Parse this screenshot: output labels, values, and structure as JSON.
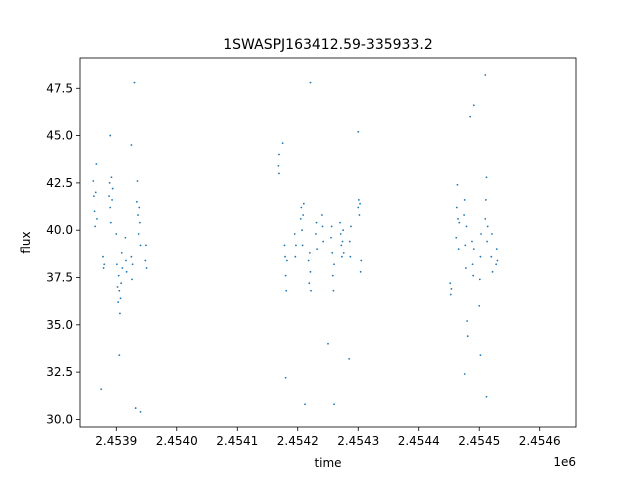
{
  "chart_data": {
    "type": "scatter",
    "title": "1SWASPJ163412.59-335933.2",
    "xlabel": "time",
    "ylabel": "flux",
    "x_offset_label": "1e6",
    "xlim": [
      2453840,
      2454660
    ],
    "ylim": [
      29.6,
      49.1
    ],
    "x_ticks": [
      2453900,
      2454000,
      2454100,
      2454200,
      2454300,
      2454400,
      2454500,
      2454600
    ],
    "x_tick_labels": [
      "2.4539",
      "2.4540",
      "2.4541",
      "2.4542",
      "2.4543",
      "2.4544",
      "2.4545",
      "2.4546"
    ],
    "y_ticks": [
      30.0,
      32.5,
      35.0,
      37.5,
      40.0,
      42.5,
      45.0,
      47.5
    ],
    "y_tick_labels": [
      "30.0",
      "32.5",
      "35.0",
      "37.5",
      "40.0",
      "42.5",
      "45.0",
      "47.5"
    ],
    "grid": false,
    "marker_color": "#1f77b4",
    "series": [
      {
        "points": [
          [
            2453862,
            42.6
          ],
          [
            2453863,
            41.8
          ],
          [
            2453864,
            41.0
          ],
          [
            2453865,
            40.2
          ],
          [
            2453866,
            42.0
          ],
          [
            2453867,
            43.5
          ],
          [
            2453868,
            40.6
          ],
          [
            2453878,
            38.6
          ],
          [
            2453879,
            38.0
          ],
          [
            2453880,
            38.2
          ],
          [
            2453888,
            41.8
          ],
          [
            2453889,
            42.5
          ],
          [
            2453890,
            41.2
          ],
          [
            2453891,
            40.4
          ],
          [
            2453892,
            42.8
          ],
          [
            2453893,
            41.6
          ],
          [
            2453894,
            42.2
          ],
          [
            2453900,
            39.8
          ],
          [
            2453901,
            38.2
          ],
          [
            2453902,
            37.0
          ],
          [
            2453903,
            36.2
          ],
          [
            2453904,
            37.6
          ],
          [
            2453905,
            36.8
          ],
          [
            2453906,
            35.6
          ],
          [
            2453907,
            36.4
          ],
          [
            2453908,
            37.2
          ],
          [
            2453909,
            38.8
          ],
          [
            2453910,
            38.0
          ],
          [
            2453915,
            39.6
          ],
          [
            2453916,
            38.4
          ],
          [
            2453917,
            37.8
          ],
          [
            2453925,
            38.6
          ],
          [
            2453926,
            37.4
          ],
          [
            2453927,
            38.2
          ],
          [
            2453934,
            41.5
          ],
          [
            2453935,
            42.6
          ],
          [
            2453936,
            40.8
          ],
          [
            2453937,
            39.8
          ],
          [
            2453938,
            41.2
          ],
          [
            2453939,
            40.4
          ],
          [
            2453940,
            39.2
          ],
          [
            2453948,
            38.4
          ],
          [
            2453949,
            39.2
          ],
          [
            2453950,
            38.0
          ],
          [
            2453875,
            31.6
          ],
          [
            2453930,
            47.8
          ],
          [
            2453932,
            30.6
          ],
          [
            2453940,
            30.4
          ],
          [
            2453890,
            45.0
          ],
          [
            2453925,
            44.5
          ],
          [
            2453905,
            33.4
          ],
          [
            2454168,
            43.4
          ],
          [
            2454169,
            44.0
          ],
          [
            2454169,
            43.0
          ],
          [
            2454178,
            39.2
          ],
          [
            2454179,
            38.6
          ],
          [
            2454180,
            37.6
          ],
          [
            2454181,
            36.8
          ],
          [
            2454182,
            38.4
          ],
          [
            2454195,
            39.8
          ],
          [
            2454196,
            38.6
          ],
          [
            2454197,
            39.2
          ],
          [
            2454205,
            40.6
          ],
          [
            2454206,
            41.2
          ],
          [
            2454207,
            40.0
          ],
          [
            2454208,
            39.2
          ],
          [
            2454209,
            40.8
          ],
          [
            2454210,
            41.4
          ],
          [
            2454218,
            38.4
          ],
          [
            2454219,
            37.2
          ],
          [
            2454220,
            38.8
          ],
          [
            2454221,
            37.8
          ],
          [
            2454222,
            36.8
          ],
          [
            2454230,
            39.8
          ],
          [
            2454231,
            40.4
          ],
          [
            2454232,
            39.0
          ],
          [
            2454240,
            40.8
          ],
          [
            2454241,
            40.2
          ],
          [
            2454242,
            39.4
          ],
          [
            2454255,
            39.6
          ],
          [
            2454256,
            40.2
          ],
          [
            2454257,
            38.8
          ],
          [
            2454258,
            37.6
          ],
          [
            2454259,
            36.8
          ],
          [
            2454260,
            38.2
          ],
          [
            2454270,
            40.4
          ],
          [
            2454271,
            39.8
          ],
          [
            2454272,
            39.2
          ],
          [
            2454273,
            38.6
          ],
          [
            2454274,
            39.4
          ],
          [
            2454275,
            40.0
          ],
          [
            2454276,
            38.8
          ],
          [
            2454286,
            39.4
          ],
          [
            2454287,
            38.6
          ],
          [
            2454288,
            40.2
          ],
          [
            2454300,
            41.2
          ],
          [
            2454301,
            41.6
          ],
          [
            2454302,
            40.8
          ],
          [
            2454303,
            41.4
          ],
          [
            2454304,
            37.8
          ],
          [
            2454305,
            38.4
          ],
          [
            2454175,
            44.6
          ],
          [
            2454180,
            32.2
          ],
          [
            2454212,
            30.8
          ],
          [
            2454221,
            47.8
          ],
          [
            2454250,
            34.0
          ],
          [
            2454260,
            30.8
          ],
          [
            2454285,
            33.2
          ],
          [
            2454300,
            45.2
          ],
          [
            2454452,
            37.2
          ],
          [
            2454453,
            36.6
          ],
          [
            2454454,
            36.9
          ],
          [
            2454462,
            39.6
          ],
          [
            2454463,
            41.2
          ],
          [
            2454464,
            42.4
          ],
          [
            2454465,
            40.6
          ],
          [
            2454466,
            39.0
          ],
          [
            2454467,
            40.4
          ],
          [
            2454475,
            40.8
          ],
          [
            2454476,
            41.6
          ],
          [
            2454477,
            39.2
          ],
          [
            2454478,
            38.0
          ],
          [
            2454479,
            40.2
          ],
          [
            2454480,
            35.2
          ],
          [
            2454481,
            34.4
          ],
          [
            2454488,
            39.4
          ],
          [
            2454489,
            38.2
          ],
          [
            2454490,
            37.6
          ],
          [
            2454491,
            39.0
          ],
          [
            2454500,
            36.0
          ],
          [
            2454501,
            37.4
          ],
          [
            2454502,
            38.6
          ],
          [
            2454503,
            39.8
          ],
          [
            2454510,
            40.6
          ],
          [
            2454511,
            41.6
          ],
          [
            2454512,
            42.8
          ],
          [
            2454513,
            39.4
          ],
          [
            2454514,
            40.2
          ],
          [
            2454520,
            38.6
          ],
          [
            2454521,
            39.8
          ],
          [
            2454522,
            37.8
          ],
          [
            2454528,
            38.2
          ],
          [
            2454529,
            39.0
          ],
          [
            2454530,
            38.4
          ],
          [
            2454476,
            32.4
          ],
          [
            2454491,
            46.6
          ],
          [
            2454510,
            48.2
          ],
          [
            2454512,
            31.2
          ],
          [
            2454502,
            33.4
          ],
          [
            2454485,
            46.0
          ]
        ]
      }
    ]
  }
}
